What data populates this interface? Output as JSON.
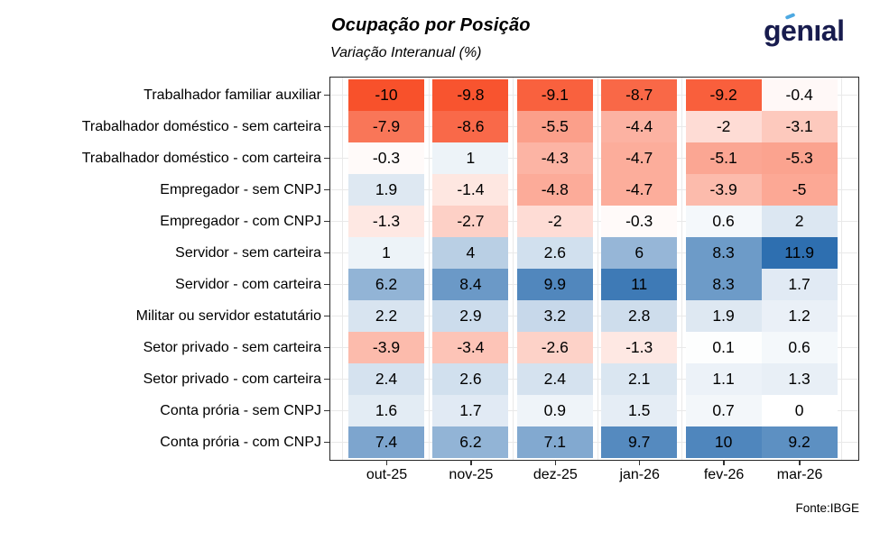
{
  "header": {
    "logo_text": "genıal"
  },
  "footer": {
    "source": "Fonte:IBGE"
  },
  "colors": {
    "negative_max": "#F8512B",
    "positive_max": "#2E6FB0",
    "zero": "#FFFFFF",
    "grid": "#E9E9E9",
    "panel_border": "#262626",
    "tick": "#333333",
    "text": "#000000",
    "logo_navy": "#181C4E",
    "logo_accent": "#4DA9E2"
  },
  "chart_data": {
    "type": "heatmap",
    "title": "Ocupação por Posição",
    "subtitle": "Variação Interanual (%)",
    "source": "Fonte:IBGE",
    "legend": "none",
    "grid": "on",
    "columns": [
      "out-25",
      "nov-25",
      "dez-25",
      "jan-26",
      "fev-26",
      "mar-26"
    ],
    "rows": [
      "Trabalhador familiar auxiliar",
      "Trabalhador doméstico - sem carteira",
      "Trabalhador doméstico - com carteira",
      "Empregador - sem CNPJ",
      "Empregador - com CNPJ",
      "Servidor - sem carteira",
      "Servidor - com carteira",
      "Militar ou servidor estatutário",
      "Setor privado - sem carteira",
      "Setor privado - com carteira",
      "Conta prória - sem CNPJ",
      "Conta prória - com CNPJ"
    ],
    "values": [
      [
        -10,
        -9.8,
        -9.1,
        -8.7,
        -9.2,
        -0.4
      ],
      [
        -7.9,
        -8.6,
        -5.5,
        -4.4,
        -2,
        -3.1
      ],
      [
        -0.3,
        1,
        -4.3,
        -4.7,
        -5.1,
        -5.3
      ],
      [
        1.9,
        -1.4,
        -4.8,
        -4.7,
        -3.9,
        -5
      ],
      [
        -1.3,
        -2.7,
        -2,
        -0.3,
        0.6,
        2
      ],
      [
        1,
        4,
        2.6,
        6,
        8.3,
        11.9
      ],
      [
        6.2,
        8.4,
        9.9,
        11,
        8.3,
        1.7
      ],
      [
        2.2,
        2.9,
        3.2,
        2.8,
        1.9,
        1.2
      ],
      [
        -3.9,
        -3.4,
        -2.6,
        -1.3,
        0.1,
        0.6
      ],
      [
        2.4,
        2.6,
        2.4,
        2.1,
        1.1,
        1.3
      ],
      [
        1.6,
        1.7,
        0.9,
        1.5,
        0.7,
        0
      ],
      [
        7.4,
        6.2,
        7.1,
        9.7,
        10,
        9.2
      ]
    ],
    "color_domain": {
      "min": -10,
      "max": 11.9
    }
  }
}
